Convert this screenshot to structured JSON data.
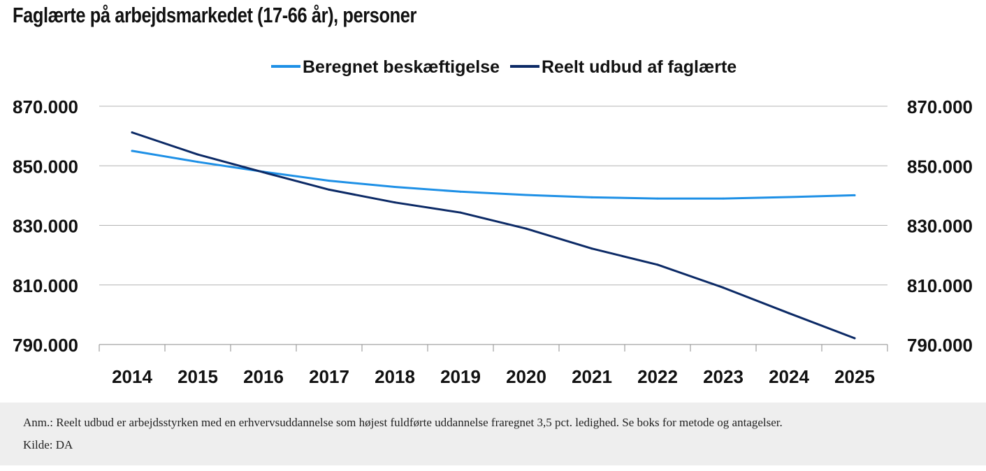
{
  "title": "Faglærte på arbejdsmarkedet (17-66 år), personer",
  "chart_data": {
    "type": "line",
    "title": "Faglærte på arbejdsmarkedet (17-66 år), personer",
    "categories": [
      "2014",
      "2015",
      "2016",
      "2017",
      "2018",
      "2019",
      "2020",
      "2021",
      "2022",
      "2023",
      "2024",
      "2025"
    ],
    "y_ticks": [
      "870.000",
      "850.000",
      "830.000",
      "810.000",
      "790.000"
    ],
    "y_tick_values": [
      870000,
      850000,
      830000,
      810000,
      790000
    ],
    "ylim": [
      790000,
      870000
    ],
    "grid": true,
    "legend_position": "top-center",
    "series": [
      {
        "name": "Beregnet beskæftigelse",
        "color": "#1e90e6",
        "values": [
          855000,
          851300,
          848000,
          845000,
          842900,
          841300,
          840200,
          839400,
          839000,
          839000,
          839500,
          840100
        ]
      },
      {
        "name": "Reelt udbud af faglærte",
        "color": "#0c2a66",
        "values": [
          861200,
          853800,
          847800,
          842000,
          837700,
          834300,
          828900,
          822200,
          816800,
          809100,
          800500,
          792100
        ]
      }
    ]
  },
  "note": {
    "anm": "Anm.: Reelt udbud er arbejdsstyrken med en erhvervsuddannelse som højest fuldførte uddannelse fraregnet 3,5 pct. ledighed. Se boks for metode og antagelser.",
    "source": "Kilde: DA"
  }
}
